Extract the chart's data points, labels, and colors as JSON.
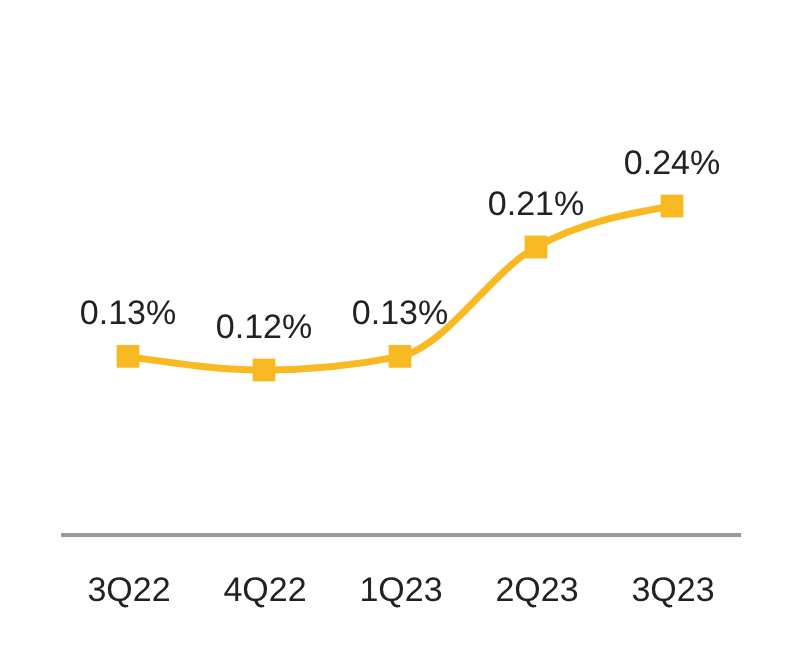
{
  "chart_data": {
    "type": "line",
    "categories": [
      "3Q22",
      "4Q22",
      "1Q23",
      "2Q23",
      "3Q23"
    ],
    "series": [
      {
        "color": "#f8b922",
        "values": [
          0.13,
          0.12,
          0.13,
          0.21,
          0.24
        ],
        "value_labels": [
          "0.13%",
          "0.12%",
          "0.13%",
          "0.21%",
          "0.24%"
        ]
      }
    ],
    "marker": "square",
    "line_style": "solid",
    "tick_labels": "x"
  }
}
